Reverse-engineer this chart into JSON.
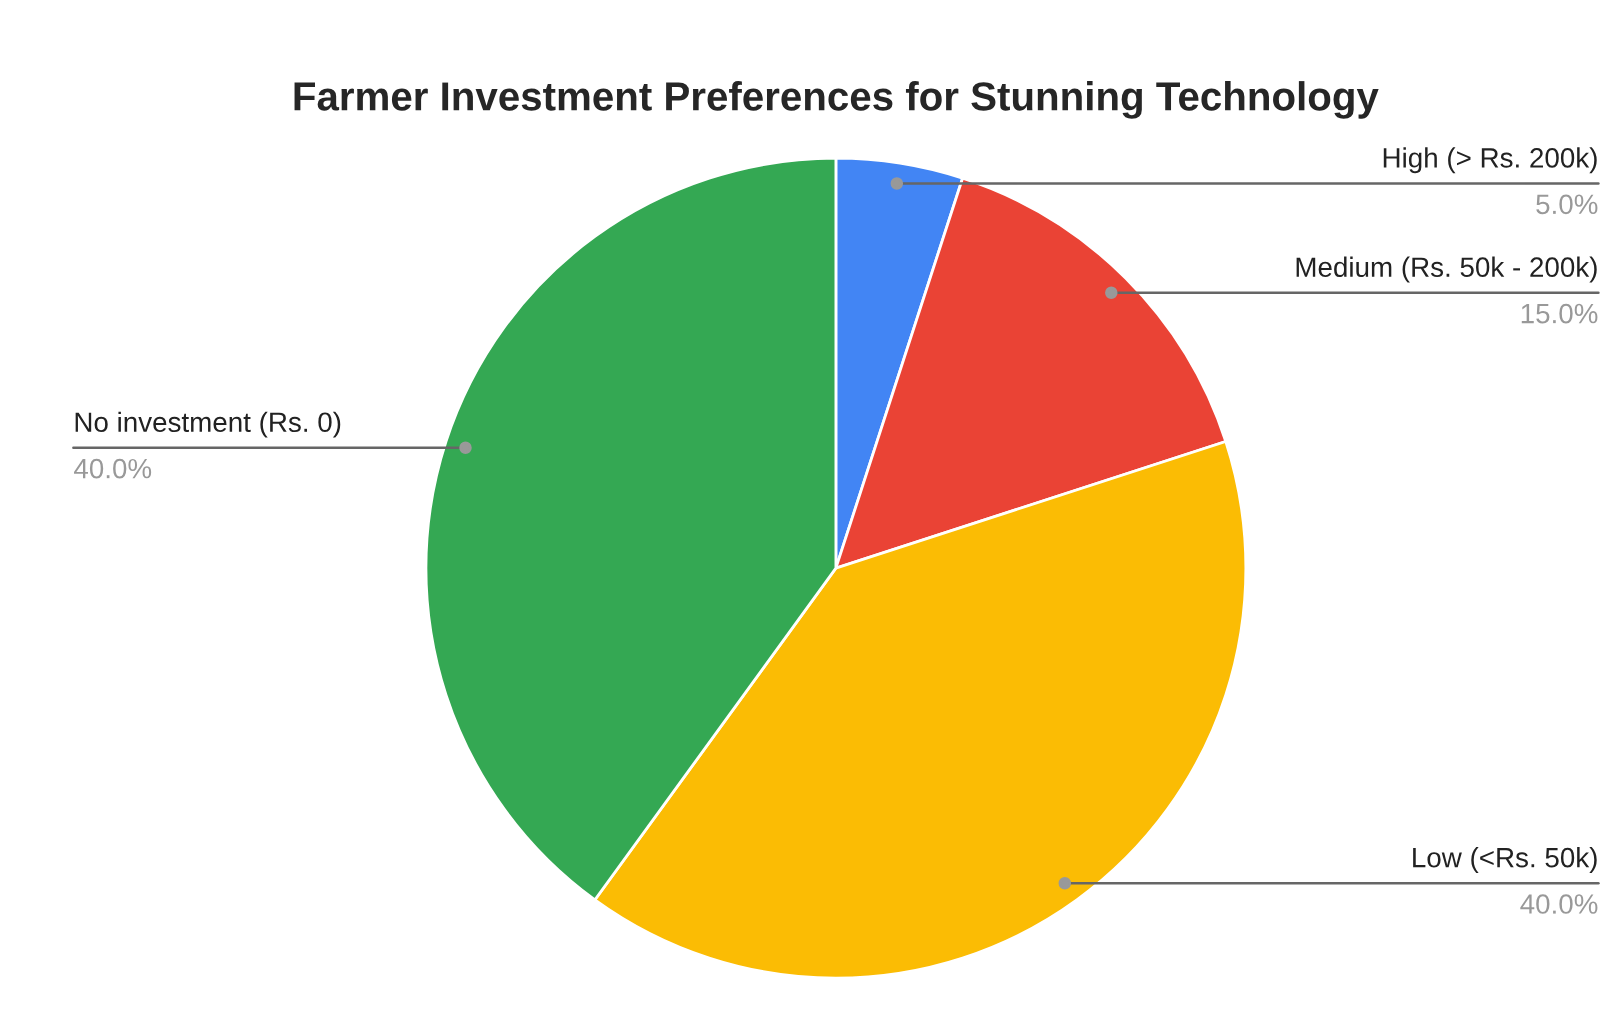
{
  "chart_data": {
    "type": "pie",
    "title": "Farmer Investment Preferences for Stunning Technology",
    "categories": [
      "High (> Rs. 200k)",
      "Medium (Rs. 50k - 200k)",
      "Low (<Rs. 50k)",
      "No investment (Rs. 0)"
    ],
    "values": [
      5.0,
      15.0,
      40.0,
      40.0
    ],
    "colors": [
      "#4285f4",
      "#ea4335",
      "#fbbc04",
      "#34a853"
    ],
    "value_labels": [
      "5.0%",
      "15.0%",
      "40.0%",
      "40.0%"
    ],
    "legend": false
  }
}
